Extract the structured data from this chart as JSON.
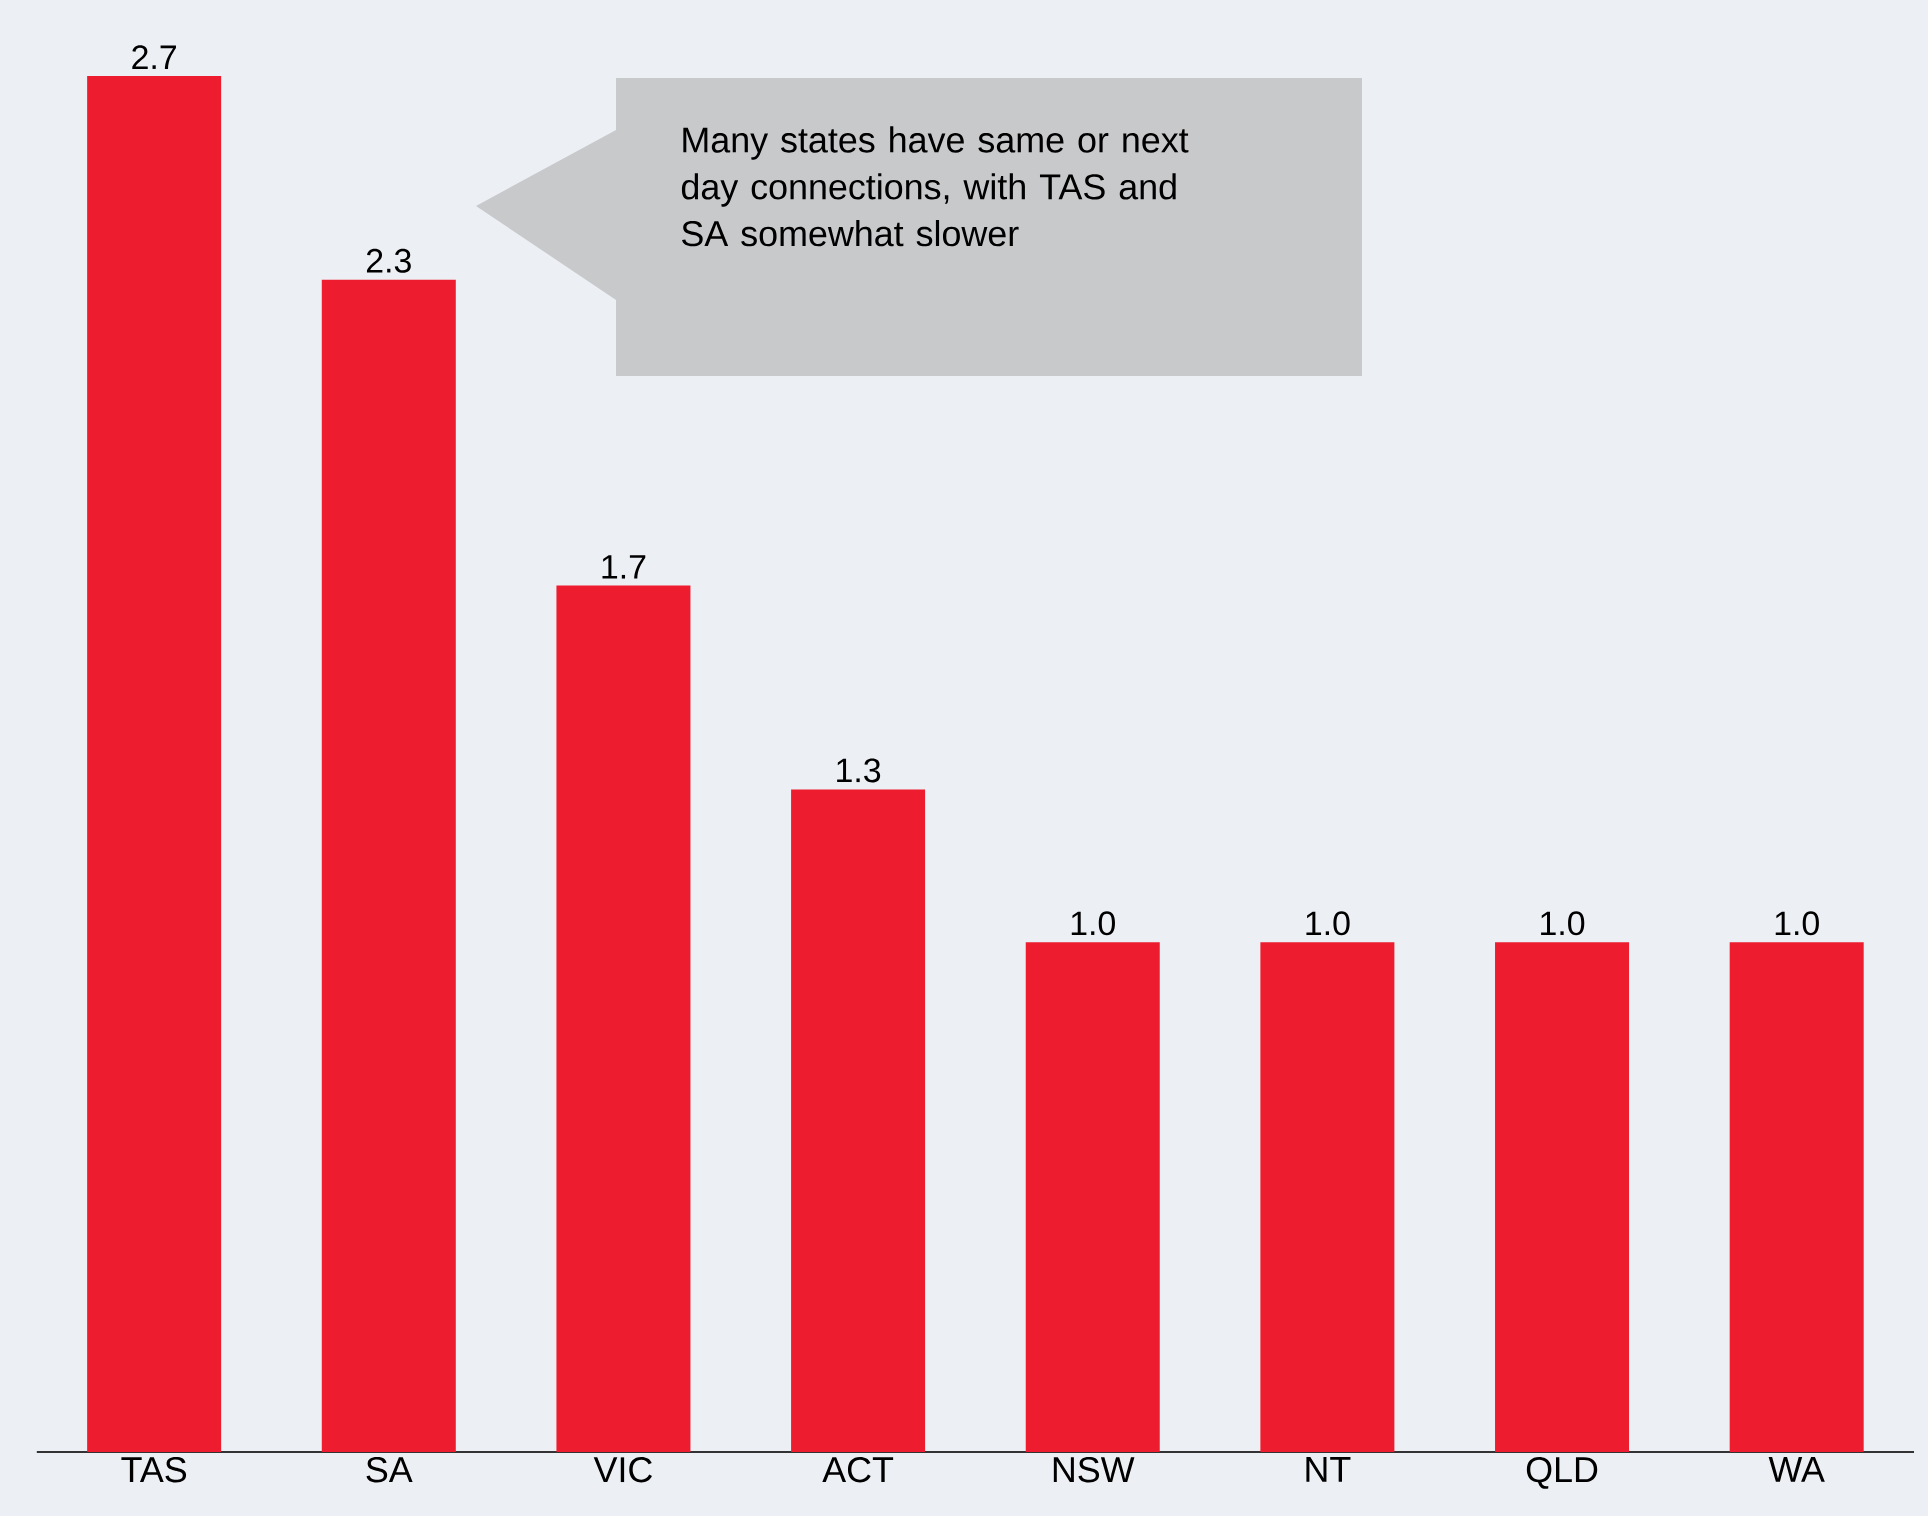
{
  "chart_data": {
    "type": "bar",
    "categories": [
      "TAS",
      "SA",
      "VIC",
      "ACT",
      "NSW",
      "NT",
      "QLD",
      "WA"
    ],
    "values": [
      2.7,
      2.3,
      1.7,
      1.3,
      1.0,
      1.0,
      1.0,
      1.0
    ],
    "color": "#ed1c2e",
    "value_labels": [
      "2.7",
      "2.3",
      "1.7",
      "1.3",
      "1.0",
      "1.0",
      "1.0",
      "1.0"
    ],
    "annotations": [
      "Many states have same or next day connections, with TAS and SA somewhat slower"
    ]
  }
}
